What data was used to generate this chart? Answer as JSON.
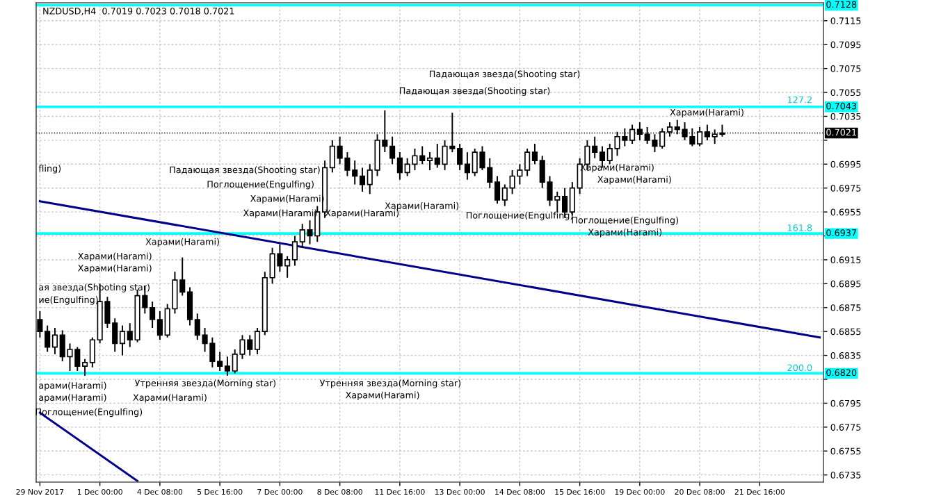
{
  "chart_data": {
    "type": "candlestick",
    "title": "NZDUSD,H4  0.7019 0.7023 0.7018 0.7021",
    "categories": [
      "29 Nov 2017",
      null,
      null,
      null,
      null,
      null,
      null,
      null,
      "1 Dec 00:00",
      null,
      null,
      null,
      null,
      null,
      null,
      null,
      "4 Dec 08:00",
      null,
      null,
      null,
      null,
      null,
      null,
      null,
      "5 Dec 16:00",
      null,
      null,
      null,
      null,
      null,
      null,
      null,
      "7 Dec 00:00",
      null,
      null,
      null,
      null,
      null,
      null,
      null,
      "8 Dec 08:00",
      null,
      null,
      null,
      null,
      null,
      null,
      null,
      "11 Dec 16:00",
      null,
      null,
      null,
      null,
      null,
      null,
      null,
      "13 Dec 00:00",
      null,
      null,
      null,
      null,
      null,
      null,
      null,
      "14 Dec 08:00",
      null,
      null,
      null,
      null,
      null,
      null,
      null,
      "15 Dec 16:00",
      null,
      null,
      null,
      null,
      null,
      null,
      null,
      "19 Dec 00:00",
      null,
      null,
      null,
      null,
      null,
      null,
      null,
      "20 Dec 08:00",
      null,
      null,
      null,
      null,
      null,
      null,
      null,
      "21 Dec 16:00",
      null,
      null,
      null,
      null,
      null,
      null,
      null,
      null
    ],
    "ohlc": [
      [
        0.6865,
        0.6872,
        0.685,
        0.6855
      ],
      [
        0.6855,
        0.686,
        0.6838,
        0.6842
      ],
      [
        0.6842,
        0.6858,
        0.6836,
        0.6852
      ],
      [
        0.6852,
        0.6856,
        0.683,
        0.6834
      ],
      [
        0.6834,
        0.6845,
        0.6822,
        0.684
      ],
      [
        0.684,
        0.6842,
        0.6822,
        0.6826
      ],
      [
        0.6826,
        0.6832,
        0.6818,
        0.6829
      ],
      [
        0.6829,
        0.685,
        0.6825,
        0.6848
      ],
      [
        0.6848,
        0.6895,
        0.6845,
        0.688
      ],
      [
        0.688,
        0.6884,
        0.6858,
        0.6862
      ],
      [
        0.6862,
        0.6866,
        0.6838,
        0.6845
      ],
      [
        0.6845,
        0.686,
        0.6835,
        0.6855
      ],
      [
        0.6855,
        0.6862,
        0.6842,
        0.6848
      ],
      [
        0.6848,
        0.689,
        0.6846,
        0.6885
      ],
      [
        0.6885,
        0.6893,
        0.687,
        0.6875
      ],
      [
        0.6875,
        0.688,
        0.6858,
        0.6865
      ],
      [
        0.6865,
        0.6872,
        0.6848,
        0.6852
      ],
      [
        0.6852,
        0.6878,
        0.685,
        0.6874
      ],
      [
        0.6874,
        0.6905,
        0.687,
        0.6898
      ],
      [
        0.6898,
        0.6917,
        0.6885,
        0.6888
      ],
      [
        0.6888,
        0.6892,
        0.686,
        0.6865
      ],
      [
        0.6865,
        0.687,
        0.6848,
        0.6852
      ],
      [
        0.6852,
        0.6858,
        0.6838,
        0.6845
      ],
      [
        0.6845,
        0.685,
        0.6825,
        0.683
      ],
      [
        0.683,
        0.6838,
        0.6822,
        0.6826
      ],
      [
        0.6826,
        0.6834,
        0.6818,
        0.6822
      ],
      [
        0.6822,
        0.684,
        0.682,
        0.6836
      ],
      [
        0.6836,
        0.6852,
        0.6832,
        0.6848
      ],
      [
        0.6848,
        0.6852,
        0.6835,
        0.684
      ],
      [
        0.684,
        0.6858,
        0.6836,
        0.6855
      ],
      [
        0.6855,
        0.6905,
        0.6852,
        0.69
      ],
      [
        0.69,
        0.6925,
        0.6895,
        0.692
      ],
      [
        0.692,
        0.6928,
        0.6905,
        0.691
      ],
      [
        0.691,
        0.6918,
        0.69,
        0.6915
      ],
      [
        0.6915,
        0.6935,
        0.691,
        0.693
      ],
      [
        0.693,
        0.6945,
        0.6925,
        0.694
      ],
      [
        0.694,
        0.6948,
        0.6928,
        0.6935
      ],
      [
        0.6935,
        0.696,
        0.693,
        0.6955
      ],
      [
        0.6955,
        0.6998,
        0.695,
        0.6992
      ],
      [
        0.6992,
        0.7015,
        0.6988,
        0.701
      ],
      [
        0.701,
        0.7018,
        0.6995,
        0.7
      ],
      [
        0.7,
        0.7005,
        0.6985,
        0.699
      ],
      [
        0.699,
        0.6998,
        0.6978,
        0.6985
      ],
      [
        0.6985,
        0.6992,
        0.6972,
        0.6978
      ],
      [
        0.6978,
        0.6995,
        0.697,
        0.699
      ],
      [
        0.699,
        0.702,
        0.6985,
        0.7015
      ],
      [
        0.7015,
        0.704,
        0.7005,
        0.701
      ],
      [
        0.701,
        0.7018,
        0.6995,
        0.7
      ],
      [
        0.7,
        0.7005,
        0.6982,
        0.6988
      ],
      [
        0.6988,
        0.7,
        0.6985,
        0.6995
      ],
      [
        0.6995,
        0.7008,
        0.699,
        0.7002
      ],
      [
        0.7002,
        0.701,
        0.6995,
        0.6998
      ],
      [
        0.6998,
        0.7005,
        0.699,
        0.7
      ],
      [
        0.7,
        0.7012,
        0.6992,
        0.6995
      ],
      [
        0.6995,
        0.7015,
        0.699,
        0.701
      ],
      [
        0.701,
        0.7038,
        0.7005,
        0.7008
      ],
      [
        0.7008,
        0.7012,
        0.699,
        0.6995
      ],
      [
        0.6995,
        0.7005,
        0.6982,
        0.6988
      ],
      [
        0.6988,
        0.7008,
        0.6985,
        0.7005
      ],
      [
        0.7005,
        0.701,
        0.699,
        0.6992
      ],
      [
        0.6992,
        0.7,
        0.6975,
        0.698
      ],
      [
        0.698,
        0.6985,
        0.6962,
        0.6965
      ],
      [
        0.6965,
        0.6978,
        0.696,
        0.6975
      ],
      [
        0.6975,
        0.699,
        0.697,
        0.6985
      ],
      [
        0.6985,
        0.6995,
        0.6978,
        0.699
      ],
      [
        0.699,
        0.7008,
        0.6985,
        0.7005
      ],
      [
        0.7005,
        0.7012,
        0.6995,
        0.6998
      ],
      [
        0.6998,
        0.7002,
        0.6975,
        0.698
      ],
      [
        0.698,
        0.6985,
        0.696,
        0.6965
      ],
      [
        0.6965,
        0.6972,
        0.6955,
        0.6968
      ],
      [
        0.6968,
        0.6975,
        0.695,
        0.6955
      ],
      [
        0.6955,
        0.698,
        0.6952,
        0.6975
      ],
      [
        0.6975,
        0.7,
        0.697,
        0.6995
      ],
      [
        0.6995,
        0.7015,
        0.699,
        0.701
      ],
      [
        0.701,
        0.7018,
        0.7,
        0.7005
      ],
      [
        0.7005,
        0.701,
        0.6992,
        0.6998
      ],
      [
        0.6998,
        0.7012,
        0.6995,
        0.7008
      ],
      [
        0.7008,
        0.7022,
        0.7002,
        0.7018
      ],
      [
        0.7018,
        0.7025,
        0.701,
        0.7015
      ],
      [
        0.7015,
        0.7028,
        0.7012,
        0.7024
      ],
      [
        0.7024,
        0.703,
        0.7015,
        0.702
      ],
      [
        0.702,
        0.7026,
        0.7012,
        0.7015
      ],
      [
        0.7015,
        0.702,
        0.7005,
        0.701
      ],
      [
        0.701,
        0.7025,
        0.7008,
        0.7022
      ],
      [
        0.7022,
        0.703,
        0.7018,
        0.7026
      ],
      [
        0.7026,
        0.7032,
        0.702,
        0.7024
      ],
      [
        0.7024,
        0.703,
        0.7015,
        0.7018
      ],
      [
        0.7018,
        0.7025,
        0.701,
        0.7012
      ],
      [
        0.7012,
        0.7026,
        0.701,
        0.7022
      ],
      [
        0.7022,
        0.7028,
        0.7015,
        0.7018
      ],
      [
        0.7018,
        0.7024,
        0.7012,
        0.702
      ],
      [
        0.702,
        0.7028,
        0.7018,
        0.7021
      ],
      null,
      null,
      null,
      null,
      null,
      null,
      null,
      null,
      null,
      null,
      null,
      null,
      null
    ],
    "series": [
      {
        "type": "line",
        "color": "#00008b",
        "values": [
          0.6964,
          null,
          null,
          null,
          null,
          null,
          null,
          null,
          null,
          null,
          null,
          null,
          null,
          null,
          null,
          null,
          null,
          null,
          null,
          null,
          null,
          null,
          null,
          null,
          null,
          null,
          null,
          null,
          null,
          null,
          null,
          null,
          null,
          null,
          null,
          null,
          null,
          null,
          null,
          null,
          null,
          null,
          null,
          null,
          null,
          null,
          null,
          null,
          null,
          null,
          null,
          null,
          null,
          null,
          null,
          null,
          null,
          null,
          null,
          null,
          null,
          null,
          null,
          null,
          null,
          null,
          null,
          null,
          null,
          null,
          null,
          null,
          null,
          null,
          null,
          null,
          null,
          null,
          null,
          null,
          null,
          null,
          null,
          null,
          null,
          null,
          null,
          null,
          null,
          null,
          null,
          null,
          null,
          null,
          null,
          null,
          null,
          null,
          null,
          null,
          null,
          null,
          null,
          null,
          0.685
        ]
      },
      {
        "type": "line",
        "color": "#00008b",
        "values": [
          0.6787,
          null,
          null,
          null,
          null,
          null,
          null,
          null,
          null,
          null,
          null,
          null,
          null,
          0.673,
          null,
          null,
          null,
          null,
          null,
          null,
          null,
          null,
          null,
          null,
          null,
          null,
          null,
          null,
          null,
          null,
          null,
          null,
          null,
          null,
          null,
          null,
          null,
          null,
          null,
          null,
          null,
          null,
          null,
          null,
          null,
          null,
          null,
          null,
          null,
          null,
          null,
          null,
          null,
          null,
          null,
          null,
          null,
          null,
          null,
          null,
          null,
          null,
          null,
          null,
          null,
          null,
          null,
          null,
          null,
          null,
          null,
          null,
          null,
          null,
          null,
          null,
          null,
          null,
          null,
          null,
          null,
          null,
          null,
          null,
          null,
          null,
          null,
          null,
          null,
          null,
          null,
          null,
          null,
          null,
          null,
          null,
          null,
          null,
          null,
          null,
          null,
          null,
          null,
          null,
          null
        ]
      }
    ],
    "ylim": [
      0.6729,
      0.713
    ],
    "yticks": [
      0.7115,
      0.7095,
      0.7075,
      0.7055,
      0.7035,
      {
        "value": 0.7015,
        "label": null
      },
      0.6995,
      0.6975,
      0.6955,
      {
        "value": 0.6935,
        "label": null
      },
      0.6915,
      0.6895,
      0.6875,
      0.6855,
      0.6835,
      {
        "value": 0.6815,
        "label": null
      },
      0.6795,
      0.6775,
      0.6755,
      0.6735
    ],
    "grid": true,
    "ref_lines": [
      {
        "axis": "y",
        "value": 0.7128,
        "label": "0.7128",
        "color": "#00ffff"
      },
      {
        "axis": "y",
        "value": 0.7043,
        "label": "0.7043",
        "color": "#00ffff"
      },
      {
        "axis": "y",
        "value": 0.6937,
        "label": "0.6937",
        "color": "#00ffff"
      },
      {
        "axis": "y",
        "value": 0.682,
        "label": "0.6820",
        "color": "#00ffff"
      },
      {
        "axis": "y",
        "value": 0.7021,
        "label": "0.7021",
        "color": "#000000",
        "line_style": "dotted"
      }
    ],
    "annotations": [
      "127.2",
      "161.8",
      "200.0",
      "Падающая звезда(Shooting star)",
      "Падающая звезда(Shooting star)",
      "Харами(Harami)",
      "Харами(Harami)",
      "Харами(Harami)",
      "Поглощение(Engulfing)",
      "Падающая звезда(Shooting star)",
      "Поглощение(Engulfing)",
      "Харами(Harami)",
      "Харами(Harami)",
      "Поглощение(Engulfing)",
      "Харами(Harami)",
      "Харами(Harami)",
      "Харами(Harami)",
      "fling)",
      "Харами(Harami)",
      "ая звезда(Shooting star)",
      "ие(Engulfing)",
      "Харами(Harami)",
      "Харами(Harami)",
      "Утренняя звезда(Morning star)",
      "Харами(Harami)",
      "Утренняя звезда(Morning star)",
      "Харами(Harami)",
      "арами(Harami)",
      "арами(Harami)",
      "Поглощение(Engulfing)"
    ]
  }
}
